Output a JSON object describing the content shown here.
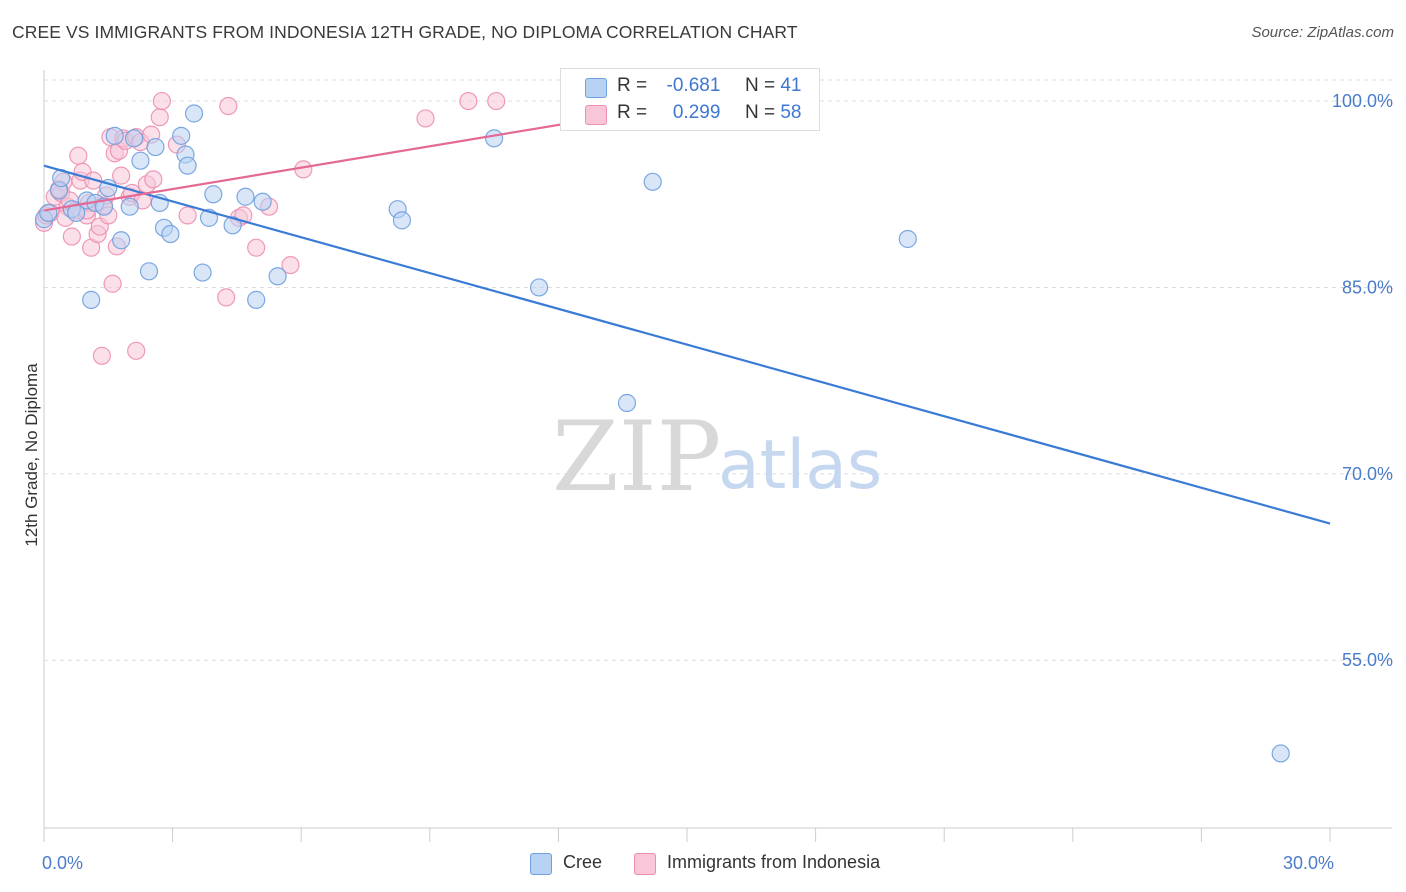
{
  "title": "CREE VS IMMIGRANTS FROM INDONESIA 12TH GRADE, NO DIPLOMA CORRELATION CHART",
  "source": "Source: ZipAtlas.com",
  "watermark": {
    "zip": "ZIP",
    "atlas": "atlas"
  },
  "colors": {
    "cree_fill": "#b8d2f3",
    "cree_stroke": "#6f9fde",
    "cree_line": "#3a7bd5",
    "indo_fill": "#f8c6d8",
    "indo_stroke": "#ec8fb0",
    "indo_line": "#e46a96",
    "grid": "#dddddd",
    "tick_text": "#4a7cc9"
  },
  "legend_top": {
    "rows": [
      {
        "r_label": "R =",
        "r_value": "-0.681",
        "n_label": "N =",
        "n_value": "41"
      },
      {
        "r_label": "R =",
        "r_value": "0.299",
        "n_label": "N =",
        "n_value": "58"
      }
    ]
  },
  "legend_bottom": {
    "items": [
      "Cree",
      "Immigrants from Indonesia"
    ]
  },
  "chart_data": {
    "type": "scatter",
    "title": "CREE VS IMMIGRANTS FROM INDONESIA 12TH GRADE, NO DIPLOMA CORRELATION CHART",
    "xlabel": "",
    "ylabel": "12th Grade, No Diploma",
    "xlim": [
      0,
      30
    ],
    "ylim": [
      41.5,
      102.5
    ],
    "x_tick_labels": [
      {
        "value": 0,
        "label": "0.0%"
      },
      {
        "value": 30,
        "label": "30.0%"
      }
    ],
    "x_minor_ticks": [
      3,
      6,
      9,
      12,
      15,
      18,
      21,
      24,
      27
    ],
    "y_ticks": [
      {
        "value": 100,
        "label": "100.0%"
      },
      {
        "value": 85,
        "label": "85.0%"
      },
      {
        "value": 70,
        "label": "70.0%"
      },
      {
        "value": 55,
        "label": "55.0%"
      }
    ],
    "grid": true,
    "series": [
      {
        "name": "Cree",
        "r": -0.681,
        "n": 41,
        "trend": [
          [
            0,
            94.8
          ],
          [
            30,
            66.0
          ]
        ],
        "points": [
          [
            0.0,
            90.5
          ],
          [
            0.35,
            92.8
          ],
          [
            0.4,
            93.8
          ],
          [
            0.65,
            91.3
          ],
          [
            0.75,
            91.0
          ],
          [
            1.0,
            92.0
          ],
          [
            1.1,
            84.0
          ],
          [
            1.2,
            91.8
          ],
          [
            1.4,
            91.5
          ],
          [
            1.5,
            93.0
          ],
          [
            1.65,
            97.2
          ],
          [
            1.8,
            88.8
          ],
          [
            2.0,
            91.5
          ],
          [
            2.1,
            97.0
          ],
          [
            2.25,
            95.2
          ],
          [
            2.45,
            86.3
          ],
          [
            2.6,
            96.3
          ],
          [
            2.7,
            91.8
          ],
          [
            2.8,
            89.8
          ],
          [
            2.95,
            89.3
          ],
          [
            3.2,
            97.2
          ],
          [
            3.3,
            95.7
          ],
          [
            3.35,
            94.8
          ],
          [
            3.5,
            99.0
          ],
          [
            3.7,
            86.2
          ],
          [
            3.85,
            90.6
          ],
          [
            3.95,
            92.5
          ],
          [
            4.4,
            90.0
          ],
          [
            4.7,
            92.3
          ],
          [
            4.95,
            84.0
          ],
          [
            5.1,
            91.9
          ],
          [
            5.45,
            85.9
          ],
          [
            8.25,
            91.3
          ],
          [
            8.35,
            90.4
          ],
          [
            10.5,
            97.0
          ],
          [
            11.55,
            85.0
          ],
          [
            13.6,
            75.7
          ],
          [
            14.2,
            93.5
          ],
          [
            20.15,
            88.9
          ],
          [
            28.85,
            47.5
          ],
          [
            0.1,
            91.0
          ]
        ]
      },
      {
        "name": "Immigrants from Indonesia",
        "r": 0.299,
        "n": 58,
        "trend": [
          [
            0,
            91.2
          ],
          [
            15,
            99.8
          ]
        ],
        "points": [
          [
            0.0,
            90.2
          ],
          [
            0.05,
            90.8
          ],
          [
            0.15,
            91.0
          ],
          [
            0.25,
            92.3
          ],
          [
            0.4,
            92.6
          ],
          [
            0.45,
            93.5
          ],
          [
            0.55,
            91.5
          ],
          [
            0.6,
            92.0
          ],
          [
            0.65,
            89.1
          ],
          [
            0.75,
            91.2
          ],
          [
            0.8,
            95.6
          ],
          [
            0.85,
            93.6
          ],
          [
            0.9,
            94.3
          ],
          [
            1.0,
            90.8
          ],
          [
            1.05,
            91.8
          ],
          [
            1.1,
            88.2
          ],
          [
            1.15,
            93.6
          ],
          [
            1.25,
            89.3
          ],
          [
            1.3,
            89.9
          ],
          [
            1.4,
            91.6
          ],
          [
            1.45,
            92.4
          ],
          [
            1.5,
            90.8
          ],
          [
            1.55,
            97.1
          ],
          [
            1.6,
            85.3
          ],
          [
            1.65,
            95.8
          ],
          [
            1.7,
            88.3
          ],
          [
            1.75,
            96.0
          ],
          [
            1.8,
            94.0
          ],
          [
            1.85,
            97.0
          ],
          [
            1.9,
            96.8
          ],
          [
            2.0,
            92.3
          ],
          [
            2.05,
            92.6
          ],
          [
            2.15,
            97.1
          ],
          [
            2.25,
            96.7
          ],
          [
            2.3,
            92.0
          ],
          [
            2.4,
            93.3
          ],
          [
            2.5,
            97.3
          ],
          [
            2.55,
            93.7
          ],
          [
            2.7,
            98.7
          ],
          [
            2.75,
            100.0
          ],
          [
            3.1,
            96.5
          ],
          [
            3.35,
            90.8
          ],
          [
            4.25,
            84.2
          ],
          [
            4.3,
            99.6
          ],
          [
            4.55,
            90.6
          ],
          [
            4.65,
            90.8
          ],
          [
            4.95,
            88.2
          ],
          [
            5.25,
            91.5
          ],
          [
            5.75,
            86.8
          ],
          [
            6.05,
            94.5
          ],
          [
            8.9,
            98.6
          ],
          [
            9.9,
            100.0
          ],
          [
            10.55,
            100.0
          ],
          [
            1.35,
            79.5
          ],
          [
            2.15,
            79.9
          ],
          [
            0.35,
            92.9
          ],
          [
            1.0,
            91.2
          ],
          [
            0.5,
            90.6
          ]
        ]
      }
    ]
  }
}
